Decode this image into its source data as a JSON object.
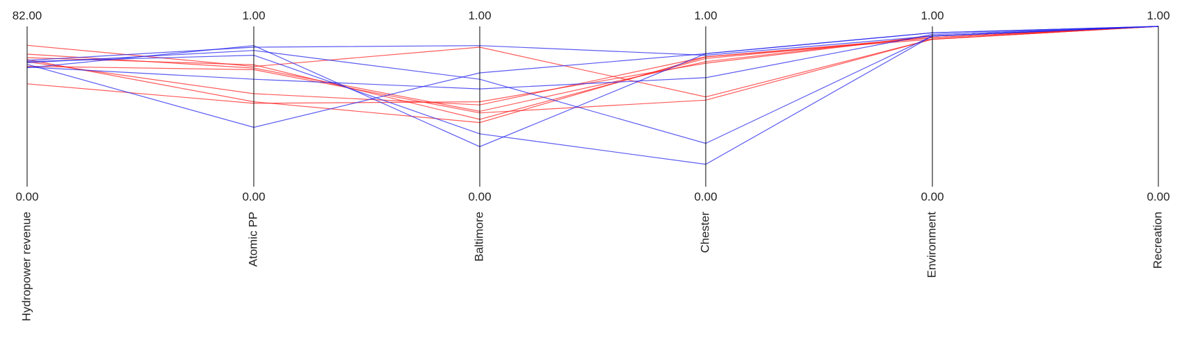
{
  "chart_data": {
    "type": "parallel-coordinates",
    "axes": [
      {
        "name": "Hydropower revenue",
        "max": 82.0,
        "min": 0.0,
        "max_label": "82.00",
        "min_label": "0.00"
      },
      {
        "name": "Atomic PP",
        "max": 1.0,
        "min": 0.0,
        "max_label": "1.00",
        "min_label": "0.00"
      },
      {
        "name": "Baltimore",
        "max": 1.0,
        "min": 0.0,
        "max_label": "1.00",
        "min_label": "0.00"
      },
      {
        "name": "Chester",
        "max": 1.0,
        "min": 0.0,
        "max_label": "1.00",
        "min_label": "0.00"
      },
      {
        "name": "Environment",
        "max": 1.0,
        "min": 0.0,
        "max_label": "1.00",
        "min_label": "0.00"
      },
      {
        "name": "Recreation",
        "max": 1.0,
        "min": 0.0,
        "max_label": "1.00",
        "min_label": "0.00"
      }
    ],
    "colors": {
      "red": "#ff2222",
      "blue": "#2222ee"
    },
    "series": [
      {
        "color": "red",
        "values": [
          72.3,
          0.75,
          0.87,
          0.56,
          0.92,
          1.0
        ]
      },
      {
        "color": "red",
        "values": [
          67.8,
          0.74,
          0.47,
          0.78,
          0.94,
          1.0
        ]
      },
      {
        "color": "red",
        "values": [
          66.0,
          0.76,
          0.42,
          0.8,
          0.93,
          1.0
        ]
      },
      {
        "color": "red",
        "values": [
          63.9,
          0.58,
          0.51,
          0.81,
          0.92,
          1.0
        ]
      },
      {
        "color": "red",
        "values": [
          65.0,
          0.53,
          0.4,
          0.81,
          0.93,
          1.0
        ]
      },
      {
        "color": "red",
        "values": [
          61.6,
          0.73,
          0.46,
          0.54,
          0.92,
          1.0
        ]
      },
      {
        "color": "red",
        "values": [
          52.6,
          0.52,
          0.53,
          0.77,
          0.94,
          1.0
        ]
      },
      {
        "color": "blue",
        "values": [
          64.6,
          0.87,
          0.88,
          0.82,
          0.94,
          1.0
        ]
      },
      {
        "color": "blue",
        "values": [
          63.4,
          0.85,
          0.67,
          0.27,
          0.94,
          1.0
        ]
      },
      {
        "color": "blue",
        "values": [
          62.6,
          0.37,
          0.71,
          0.83,
          0.96,
          1.0
        ]
      },
      {
        "color": "blue",
        "values": [
          61.2,
          0.67,
          0.61,
          0.68,
          0.95,
          1.0
        ]
      },
      {
        "color": "blue",
        "values": [
          64.0,
          0.82,
          0.33,
          0.14,
          0.94,
          1.0
        ]
      },
      {
        "color": "blue",
        "values": [
          60.8,
          0.88,
          0.25,
          0.83,
          0.96,
          1.0
        ]
      }
    ]
  }
}
